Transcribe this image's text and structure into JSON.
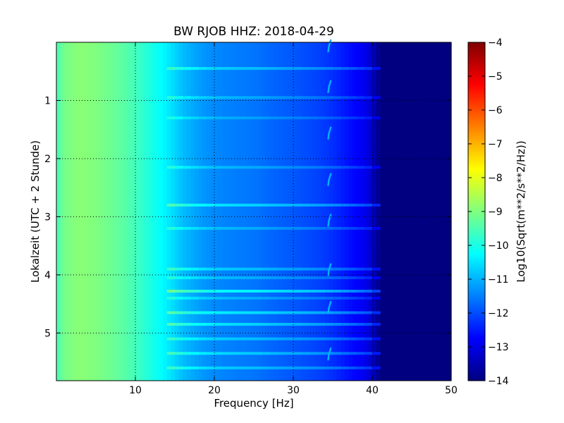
{
  "chart_data": {
    "type": "heatmap",
    "title": "BW RJOB HHZ: 2018-04-29",
    "xlabel": "Frequency [Hz]",
    "ylabel": "Lokalzeit (UTC + 2 Stunde)",
    "xlim": [
      0,
      50
    ],
    "ylim": [
      5.82,
      0.0
    ],
    "y_inverted": true,
    "x_ticks": [
      10,
      20,
      30,
      40,
      50
    ],
    "y_ticks": [
      1,
      2,
      3,
      4,
      5
    ],
    "grid": true,
    "colormap": "jet",
    "colorbar": {
      "label": "Log10(Sqrt(m**2/s**2/Hz))",
      "range": [
        -14,
        -4
      ],
      "ticks": [
        -4,
        -5,
        -6,
        -7,
        -8,
        -9,
        -10,
        -11,
        -12,
        -13,
        -14
      ]
    },
    "psd_profile": {
      "frequency_hz": [
        0,
        1,
        3,
        5,
        8,
        10,
        12,
        14,
        16,
        18,
        20,
        22,
        25,
        28,
        30,
        33,
        35,
        37,
        39,
        40,
        41,
        45,
        50
      ],
      "log10_amplitude": [
        -9.6,
        -9.1,
        -8.9,
        -9.0,
        -9.3,
        -9.6,
        -10.0,
        -10.4,
        -10.9,
        -11.2,
        -11.4,
        -11.5,
        -11.6,
        -11.8,
        -11.9,
        -12.1,
        -12.3,
        -12.6,
        -12.9,
        -13.3,
        -14.0,
        -14.0,
        -14.0
      ]
    },
    "tonal_line": {
      "frequency_hz": 34.5,
      "log10_amplitude": -11.0,
      "bursts_local_hour": [
        0.05,
        0.75,
        1.55,
        2.35,
        3.05,
        3.9,
        4.55,
        5.35
      ]
    },
    "bands": [
      {
        "hour": 0.45,
        "delta": 0.7
      },
      {
        "hour": 0.95,
        "delta": 0.5
      },
      {
        "hour": 1.3,
        "delta": 0.4
      },
      {
        "hour": 2.15,
        "delta": 0.5
      },
      {
        "hour": 2.8,
        "delta": 0.9
      },
      {
        "hour": 3.2,
        "delta": 0.5
      },
      {
        "hour": 3.9,
        "delta": 0.7
      },
      {
        "hour": 4.05,
        "delta": 0.5
      },
      {
        "hour": 4.28,
        "delta": 1.2
      },
      {
        "hour": 4.4,
        "delta": 0.5
      },
      {
        "hour": 4.65,
        "delta": 1.0
      },
      {
        "hour": 4.85,
        "delta": 0.9
      },
      {
        "hour": 5.1,
        "delta": 0.7
      },
      {
        "hour": 5.35,
        "delta": 0.8
      },
      {
        "hour": 5.6,
        "delta": 0.7
      }
    ]
  }
}
